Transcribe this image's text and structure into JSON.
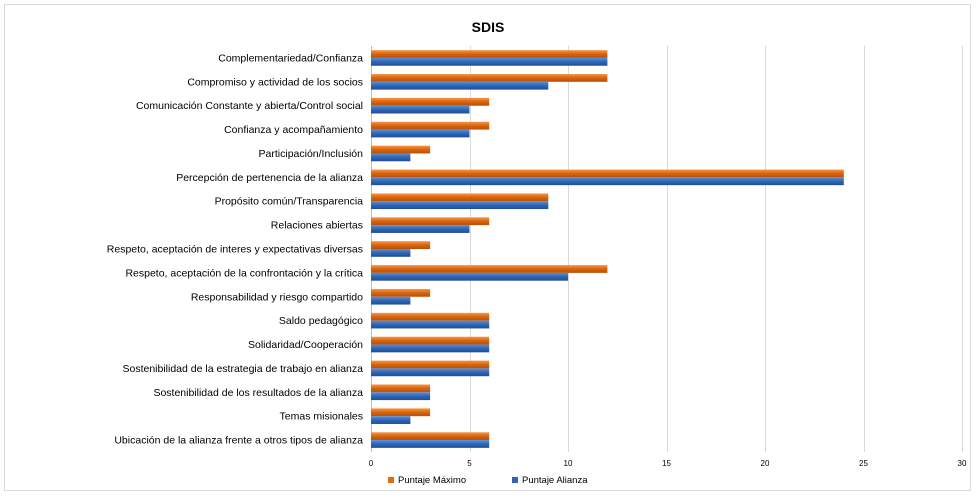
{
  "chart_data": {
    "type": "bar",
    "orientation": "horizontal",
    "title": "SDIS",
    "xlabel": "",
    "ylabel": "",
    "xlim": [
      0,
      30
    ],
    "xticks": [
      0,
      5,
      10,
      15,
      20,
      25,
      30
    ],
    "grid": true,
    "legend_position": "bottom",
    "categories": [
      "Complementariedad/Confianza",
      "Compromiso y actividad de los socios",
      "Comunicación Constante y abierta/Control social",
      "Confianza y acompañamiento",
      "Participación/Inclusión",
      "Percepción de pertenencia de la alianza",
      "Propósito común/Transparencia",
      "Relaciones abiertas",
      "Respeto, aceptación de interes y expectativas diversas",
      "Respeto, aceptación de la confrontación y la crítica",
      "Responsabilidad y riesgo compartido",
      "Saldo pedagógico",
      "Solidaridad/Cooperación",
      "Sostenibilidad de la estrategia de trabajo en alianza",
      "Sostenibilidad de los resultados de la alianza",
      "Temas misionales",
      "Ubicación de la alianza frente a otros tipos de alianza"
    ],
    "series": [
      {
        "name": "Puntaje Máximo",
        "color": "#E46C0A",
        "values": [
          12,
          12,
          6,
          6,
          3,
          24,
          9,
          6,
          3,
          12,
          3,
          6,
          6,
          6,
          3,
          3,
          6
        ]
      },
      {
        "name": "Puntaje Alianza",
        "color": "#2E66B5",
        "values": [
          12,
          9,
          5,
          5,
          2,
          24,
          9,
          5,
          2,
          10,
          2,
          6,
          6,
          6,
          3,
          2,
          6
        ]
      }
    ]
  }
}
